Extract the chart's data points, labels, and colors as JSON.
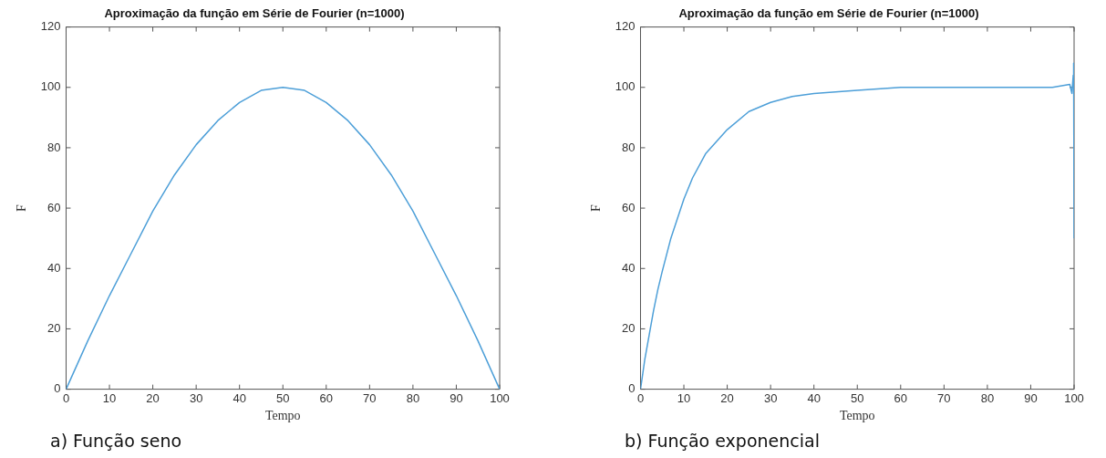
{
  "chart_data": [
    {
      "type": "line",
      "title": "Aproximação da função em Série de Fourier (n=1000)",
      "xlabel": "Tempo",
      "ylabel": "F",
      "xlim": [
        0,
        100
      ],
      "ylim": [
        0,
        120
      ],
      "xticks": [
        0,
        10,
        20,
        30,
        40,
        50,
        60,
        70,
        80,
        90,
        100
      ],
      "yticks": [
        0,
        20,
        40,
        60,
        80,
        100,
        120
      ],
      "grid": false,
      "legend": false,
      "annotations": [
        "a) Função seno"
      ],
      "series": [
        {
          "color": "#4d9fd8",
          "x": [
            0,
            5,
            10,
            15,
            20,
            25,
            30,
            35,
            40,
            45,
            50,
            55,
            60,
            65,
            70,
            75,
            80,
            85,
            90,
            95,
            100
          ],
          "values": [
            0,
            16,
            31,
            45,
            59,
            71,
            81,
            89,
            95,
            99,
            100,
            99,
            95,
            89,
            81,
            71,
            59,
            45,
            31,
            16,
            0
          ]
        }
      ]
    },
    {
      "type": "line",
      "title": "Aproximação da função em Série de Fourier (n=1000)",
      "xlabel": "Tempo",
      "ylabel": "F",
      "xlim": [
        0,
        100
      ],
      "ylim": [
        0,
        120
      ],
      "xticks": [
        0,
        10,
        20,
        30,
        40,
        50,
        60,
        70,
        80,
        90,
        100
      ],
      "yticks": [
        0,
        20,
        40,
        60,
        80,
        100,
        120
      ],
      "grid": false,
      "legend": false,
      "annotations": [
        "b) Função exponencial"
      ],
      "series": [
        {
          "color": "#4d9fd8",
          "x": [
            0,
            1,
            2,
            3,
            4,
            5,
            7,
            10,
            12,
            15,
            20,
            25,
            30,
            35,
            40,
            50,
            60,
            70,
            80,
            90,
            95,
            99,
            99.5,
            99.8,
            99.9,
            100
          ],
          "values": [
            0,
            10,
            18,
            26,
            33,
            39,
            50,
            63,
            70,
            78,
            86,
            92,
            95,
            97,
            98,
            99,
            100,
            100,
            100,
            100,
            100,
            101,
            98,
            104,
            108,
            50
          ]
        }
      ]
    }
  ]
}
